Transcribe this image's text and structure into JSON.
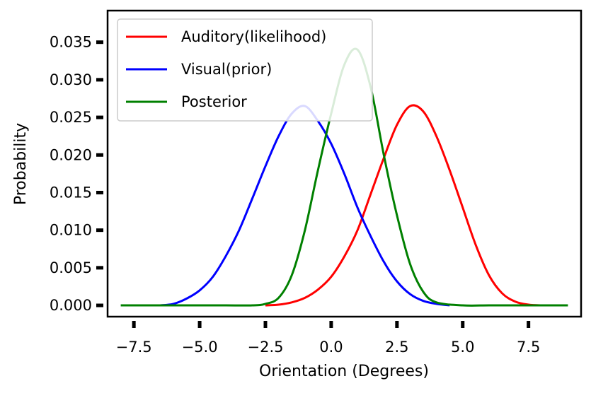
{
  "chart_data": {
    "type": "line",
    "xlabel": "Orientation (Degrees)",
    "ylabel": "Probability",
    "xlim": [
      -8.5,
      9.5
    ],
    "ylim": [
      -0.0015,
      0.0392
    ],
    "xticks": [
      -7.5,
      -5.0,
      -2.5,
      0.0,
      2.5,
      5.0,
      7.5
    ],
    "xtick_labels": [
      "−7.5",
      "−5.0",
      "−2.5",
      "0.0",
      "2.5",
      "5.0",
      "7.5"
    ],
    "yticks": [
      0.0,
      0.005,
      0.01,
      0.015,
      0.02,
      0.025,
      0.03,
      0.035
    ],
    "ytick_labels": [
      "0.000",
      "0.005",
      "0.010",
      "0.015",
      "0.020",
      "0.025",
      "0.030",
      "0.035"
    ],
    "grid": false,
    "legend_position": "top-left",
    "series": [
      {
        "name": "Auditory(likelihood)",
        "color": "#ff0000",
        "x": [
          -2.5,
          -2.0,
          -1.5,
          -1.0,
          -0.5,
          0.0,
          0.5,
          1.0,
          1.5,
          2.0,
          2.5,
          3.0,
          3.5,
          4.0,
          4.5,
          5.0,
          5.5,
          6.0,
          6.5,
          7.0,
          7.5,
          8.0
        ],
        "values": [
          0.0,
          0.0001,
          0.0004,
          0.001,
          0.0021,
          0.0038,
          0.0065,
          0.01,
          0.0148,
          0.0196,
          0.024,
          0.0265,
          0.0258,
          0.0225,
          0.018,
          0.013,
          0.008,
          0.004,
          0.0016,
          0.0005,
          0.0001,
          0.0
        ]
      },
      {
        "name": "Visual(prior)",
        "color": "#0000ff",
        "x": [
          -6.5,
          -6.0,
          -5.5,
          -5.0,
          -4.5,
          -4.0,
          -3.5,
          -3.0,
          -2.5,
          -2.0,
          -1.5,
          -1.0,
          -0.5,
          0.0,
          0.5,
          1.0,
          1.5,
          2.0,
          2.5,
          3.0,
          3.5,
          4.0,
          4.5
        ],
        "values": [
          0.0,
          0.0002,
          0.0009,
          0.002,
          0.0038,
          0.0066,
          0.01,
          0.0142,
          0.0185,
          0.0225,
          0.0255,
          0.0265,
          0.0245,
          0.0215,
          0.0175,
          0.013,
          0.0092,
          0.0058,
          0.0032,
          0.0015,
          0.0006,
          0.0002,
          0.0
        ]
      },
      {
        "name": "Posterior",
        "color": "#008000",
        "x": [
          -8.0,
          -7.0,
          -6.0,
          -5.0,
          -4.0,
          -3.0,
          -2.5,
          -2.0,
          -1.5,
          -1.0,
          -0.5,
          0.0,
          0.5,
          1.0,
          1.5,
          2.0,
          2.5,
          3.0,
          3.5,
          4.0,
          5.0,
          6.0,
          7.0,
          8.0,
          9.0
        ],
        "values": [
          0.0,
          0.0,
          0.0,
          0.0,
          0.0,
          0.0,
          0.0002,
          0.001,
          0.004,
          0.01,
          0.018,
          0.0255,
          0.032,
          0.034,
          0.029,
          0.02,
          0.012,
          0.0055,
          0.0018,
          0.0004,
          0.0,
          0.0,
          0.0,
          0.0,
          0.0
        ]
      }
    ]
  }
}
